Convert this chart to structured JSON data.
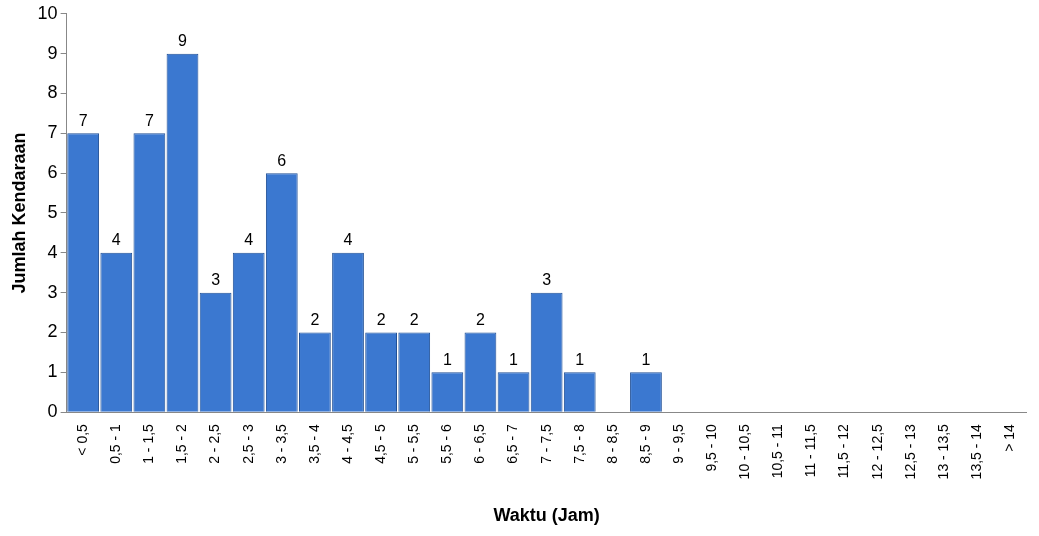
{
  "chart_data": {
    "type": "bar",
    "xlabel": "Waktu (Jam)",
    "ylabel": "Jumlah Kendaraan",
    "categories": [
      "< 0,5",
      "0,5 - 1",
      "1 - 1,5",
      "1,5 - 2",
      "2 - 2,5",
      "2,5 - 3",
      "3 - 3,5",
      "3,5 - 4",
      "4 - 4,5",
      "4,5 - 5",
      "5 - 5,5",
      "5,5 - 6",
      "6 - 6,5",
      "6,5 - 7",
      "7 - 7,5",
      "7,5 - 8",
      "8 - 8,5",
      "8,5 - 9",
      "9 - 9,5",
      "9,5 - 10",
      "10 - 10,5",
      "10,5 - 11",
      "11 - 11,5",
      "11,5 - 12",
      "12 - 12,5",
      "12,5 - 13",
      "13 - 13,5",
      "13,5 - 14",
      "> 14"
    ],
    "values": [
      7,
      4,
      7,
      9,
      3,
      4,
      6,
      2,
      4,
      2,
      2,
      1,
      2,
      1,
      3,
      1,
      null,
      1,
      null,
      null,
      null,
      null,
      null,
      null,
      null,
      null,
      null,
      null,
      null
    ],
    "color": "#3b78d0",
    "ylim": [
      0,
      10
    ],
    "yticks": [
      0,
      1,
      2,
      3,
      4,
      5,
      6,
      7,
      8,
      9,
      10
    ],
    "data_labels": true,
    "grid": false,
    "legend": false
  }
}
